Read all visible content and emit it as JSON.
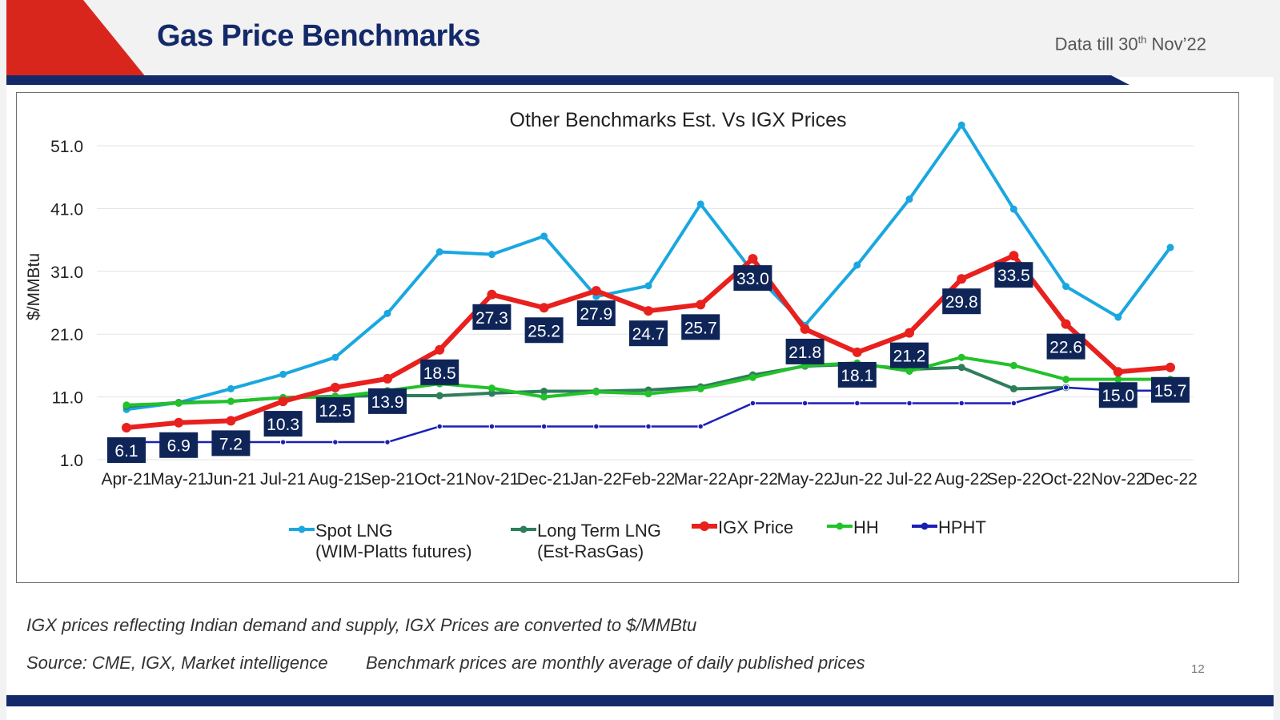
{
  "header": {
    "title": "Gas Price Benchmarks",
    "data_till_prefix": "Data till 30",
    "data_till_sup": "th",
    "data_till_suffix": " Nov’22"
  },
  "colors": {
    "navy": "#14296a",
    "red_accent": "#d9261c",
    "spot_lng": "#1aa7e0",
    "long_term_lng": "#2e7d5b",
    "igx_price": "#e8201e",
    "hh": "#22c22a",
    "hpht": "#1a1fb5",
    "label_box": "#0f2558"
  },
  "chart_data": {
    "type": "line",
    "title": "Other Benchmarks Est. Vs IGX Prices",
    "ylabel": "$/MMBtu",
    "xlabel": "",
    "ylim": [
      1.0,
      51.0
    ],
    "yticks": [
      "1.0",
      "11.0",
      "21.0",
      "31.0",
      "41.0",
      "51.0"
    ],
    "ytick_values": [
      1,
      11,
      21,
      31,
      41,
      51
    ],
    "categories": [
      "Apr-21",
      "May-21",
      "Jun-21",
      "Jul-21",
      "Aug-21",
      "Sep-21",
      "Oct-21",
      "Nov-21",
      "Dec-21",
      "Jan-22",
      "Feb-22",
      "Mar-22",
      "Apr-22",
      "May-22",
      "Jun-22",
      "Jul-22",
      "Aug-22",
      "Sep-22",
      "Oct-22",
      "Nov-22",
      "Dec-22"
    ],
    "legend_position": "bottom",
    "gridlines": true,
    "series": [
      {
        "name": "Spot LNG",
        "name_line2": "(WIM-Platts futures)",
        "color": "#1aa7e0",
        "width": 4,
        "values": [
          9.0,
          10.1,
          12.3,
          14.6,
          17.3,
          24.3,
          34.1,
          33.7,
          36.6,
          27.0,
          28.7,
          41.7,
          30.9,
          22.4,
          32.0,
          42.5,
          54.3,
          40.9,
          28.6,
          23.7,
          34.8
        ]
      },
      {
        "name": "Long Term LNG",
        "name_line2": "(Est-RasGas)",
        "color": "#2e7d5b",
        "width": 4,
        "values": [
          9.5,
          10.1,
          10.3,
          10.9,
          11.1,
          11.2,
          11.2,
          11.6,
          11.9,
          11.9,
          12.1,
          12.6,
          14.5,
          15.9,
          16.2,
          15.4,
          15.7,
          12.3,
          12.5,
          null,
          null
        ]
      },
      {
        "name": "IGX Price",
        "name_line2": "",
        "color": "#e8201e",
        "width": 6,
        "values": [
          6.1,
          6.9,
          7.2,
          10.3,
          12.5,
          13.9,
          18.5,
          27.3,
          25.2,
          27.9,
          24.7,
          25.7,
          33.0,
          21.8,
          18.1,
          21.2,
          29.8,
          33.5,
          22.6,
          15.0,
          15.7
        ],
        "labels": [
          "6.1",
          "6.9",
          "7.2",
          "10.3",
          "12.5",
          "13.9",
          "18.5",
          "27.3",
          "25.2",
          "27.9",
          "24.7",
          "25.7",
          "33.0",
          "21.8",
          "18.1",
          "21.2",
          "29.8",
          "33.5",
          "22.6",
          "15.0",
          "15.7"
        ]
      },
      {
        "name": "HH",
        "name_line2": "",
        "color": "#22c22a",
        "width": 4,
        "values": [
          9.7,
          10.0,
          10.3,
          10.9,
          11.0,
          12.0,
          13.1,
          12.4,
          11.0,
          11.8,
          11.5,
          12.3,
          14.1,
          16.0,
          16.4,
          15.1,
          17.3,
          16.0,
          13.8,
          13.8,
          13.8
        ]
      },
      {
        "name": "HPHT",
        "name_line2": "",
        "color": "#1a1fb5",
        "width": 2.5,
        "values": [
          3.8,
          3.8,
          3.8,
          3.8,
          3.8,
          3.8,
          6.3,
          6.3,
          6.3,
          6.3,
          6.3,
          6.3,
          10.0,
          10.0,
          10.0,
          10.0,
          10.0,
          10.0,
          12.5,
          12.0,
          12.0
        ]
      }
    ]
  },
  "footer": {
    "note1": "IGX prices reflecting Indian demand and supply, IGX Prices are converted to $/MMBtu",
    "source": "Source: CME, IGX, Market intelligence",
    "note2": "Benchmark prices are monthly average of daily published prices",
    "page_number": "12"
  }
}
